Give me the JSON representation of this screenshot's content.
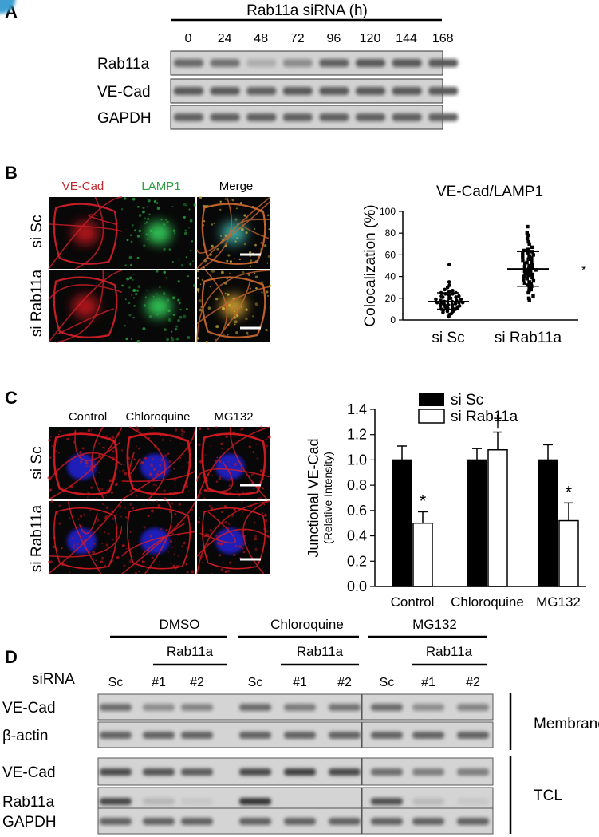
{
  "panelA": {
    "letter": "A",
    "header": "Rab11a siRNA (h)",
    "timepoints": [
      "0",
      "24",
      "48",
      "72",
      "96",
      "120",
      "144",
      "168"
    ],
    "rows": [
      {
        "label": "Rab11a",
        "intensity": [
          0.55,
          0.5,
          0.15,
          0.35,
          0.6,
          0.65,
          0.65,
          0.65
        ]
      },
      {
        "label": "VE-Cad",
        "intensity": [
          0.65,
          0.65,
          0.6,
          0.65,
          0.65,
          0.65,
          0.65,
          0.65
        ]
      },
      {
        "label": "GAPDH",
        "intensity": [
          0.6,
          0.6,
          0.6,
          0.6,
          0.6,
          0.6,
          0.6,
          0.6
        ]
      }
    ]
  },
  "panelB": {
    "letter": "B",
    "col_labels": [
      {
        "text": "VE-Cad",
        "color": "#c0282d"
      },
      {
        "text": "LAMP1",
        "color": "#2ea043"
      },
      {
        "text": "Merge",
        "color": "#000000"
      }
    ],
    "row_labels": [
      "si Sc",
      "si Rab11a"
    ],
    "chart": {
      "title": "VE-Cad/LAMP1",
      "ylabel": "Colocalization (%)",
      "yticks": [
        "0",
        "20",
        "40",
        "60",
        "80",
        "100"
      ],
      "categories": [
        "si Sc",
        "si Rab11a"
      ],
      "significance": "*"
    }
  },
  "panelC": {
    "letter": "C",
    "col_labels": [
      "Control",
      "Chloroquine",
      "MG132"
    ],
    "row_labels": [
      "si Sc",
      "si Rab11a"
    ],
    "legend": [
      "si Sc",
      "si Rab11a"
    ],
    "chart": {
      "ylabel": "Junctional VE-Cad",
      "ylabel2": "(Relative Intensity)",
      "yticks": [
        "0.0",
        "0.2",
        "0.4",
        "0.6",
        "0.8",
        "1.0",
        "1.2",
        "1.4"
      ],
      "categories": [
        "Control",
        "Chloroquine",
        "MG132"
      ],
      "marks": [
        "*",
        "†",
        "*"
      ]
    }
  },
  "panelD": {
    "letter": "D",
    "groups": [
      "DMSO",
      "Chloroquine",
      "MG132"
    ],
    "sub_label": "Rab11a",
    "row_header": "siRNA",
    "lanes": [
      "Sc",
      "#1",
      "#2",
      "Sc",
      "#1",
      "#2",
      "Sc",
      "#1",
      "#2"
    ],
    "membrane_rows": [
      "VE-Cad",
      "β-actin"
    ],
    "tcl_rows": [
      "VE-Cad",
      "Rab11a",
      "GAPDH"
    ],
    "membrane_label": "Membrane",
    "tcl_label": "TCL"
  },
  "chart_data": [
    {
      "type": "scatter",
      "title": "VE-Cad/LAMP1",
      "ylabel": "Colocalization (%)",
      "ylim": [
        0,
        100
      ],
      "categories": [
        "si Sc",
        "si Rab11a"
      ],
      "series": [
        {
          "category": "si Sc",
          "mean": 17,
          "sd_low": 10,
          "sd_high": 25,
          "values": [
            3,
            5,
            6,
            7,
            8,
            8,
            9,
            10,
            10,
            11,
            11,
            12,
            12,
            13,
            13,
            14,
            14,
            14,
            15,
            15,
            16,
            16,
            16,
            17,
            17,
            17,
            18,
            18,
            19,
            19,
            20,
            20,
            21,
            21,
            22,
            22,
            23,
            24,
            24,
            25,
            25,
            26,
            27,
            28,
            30,
            32,
            35,
            51
          ]
        },
        {
          "category": "si Rab11a",
          "mean": 47,
          "sd_low": 31,
          "sd_high": 63,
          "values": [
            18,
            20,
            22,
            25,
            27,
            28,
            30,
            31,
            32,
            33,
            34,
            35,
            36,
            37,
            38,
            39,
            40,
            41,
            42,
            43,
            44,
            45,
            45,
            46,
            47,
            48,
            49,
            50,
            51,
            52,
            53,
            54,
            55,
            56,
            57,
            58,
            59,
            60,
            61,
            62,
            63,
            64,
            65,
            67,
            70,
            72,
            75,
            78,
            80,
            86
          ]
        }
      ]
    },
    {
      "type": "bar",
      "ylabel": "Junctional VE-Cad (Relative Intensity)",
      "ylim": [
        0,
        1.4
      ],
      "categories": [
        "Control",
        "Chloroquine",
        "MG132"
      ],
      "series": [
        {
          "name": "si Sc",
          "values": [
            1.0,
            1.0,
            1.0
          ],
          "error": [
            0.11,
            0.09,
            0.12
          ]
        },
        {
          "name": "si Rab11a",
          "values": [
            0.5,
            1.08,
            0.52
          ],
          "error": [
            0.09,
            0.14,
            0.14
          ]
        }
      ]
    }
  ]
}
